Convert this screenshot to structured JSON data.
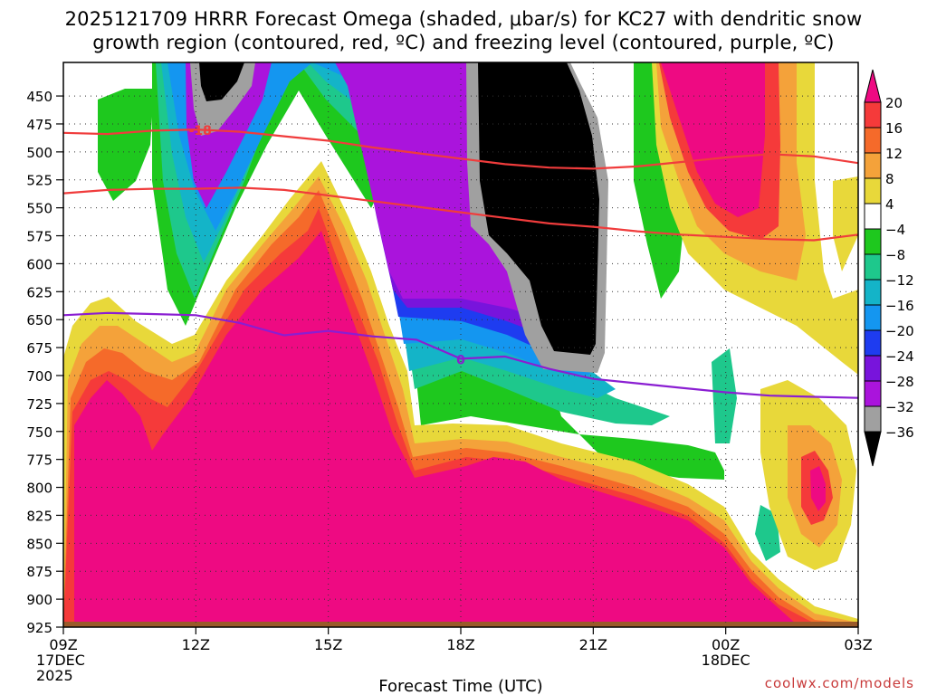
{
  "chart_data": {
    "type": "heatmap",
    "title_line1": "2025121709 HRRR Forecast Omega (shaded, μbar/s) for KC27 with dendritic snow",
    "title_line2": "growth region (contoured, red, ºC) and freezing level (contoured, purple, ºC)",
    "xlabel": "Forecast Time (UTC)",
    "ylabel": "",
    "credit": "coolwx.com/models",
    "x_range": [
      0,
      18
    ],
    "y_range": [
      925,
      420
    ],
    "y_ticks": [
      450,
      475,
      500,
      525,
      550,
      575,
      600,
      625,
      650,
      675,
      700,
      725,
      750,
      775,
      800,
      825,
      850,
      875,
      900,
      925
    ],
    "y_labels": [
      "450",
      "475",
      "500",
      "525",
      "550",
      "575",
      "600",
      "625",
      "650",
      "675",
      "700",
      "725",
      "750",
      "775",
      "800",
      "825",
      "850",
      "875",
      "900",
      "925"
    ],
    "x_ticks": [
      {
        "h": 0,
        "line1": "09Z",
        "line2": "17DEC",
        "line3": "2025"
      },
      {
        "h": 3,
        "line1": "12Z",
        "line2": "",
        "line3": ""
      },
      {
        "h": 6,
        "line1": "15Z",
        "line2": "",
        "line3": ""
      },
      {
        "h": 9,
        "line1": "18Z",
        "line2": "",
        "line3": ""
      },
      {
        "h": 12,
        "line1": "21Z",
        "line2": "",
        "line3": ""
      },
      {
        "h": 15,
        "line1": "00Z",
        "line2": "18DEC",
        "line3": ""
      },
      {
        "h": 18,
        "line1": "03Z",
        "line2": "",
        "line3": ""
      }
    ],
    "colorbar": {
      "labels": [
        "20",
        "16",
        "12",
        "8",
        "4",
        "−4",
        "−8",
        "−12",
        "−16",
        "−20",
        "−24",
        "−28",
        "−32",
        "−36"
      ],
      "colors": [
        "#ee0a82",
        "#f53a3a",
        "#f56a2a",
        "#f4a23a",
        "#e8d83a",
        "#ffffff",
        "#1ec81e",
        "#1ec88c",
        "#14b4c8",
        "#1496f0",
        "#1e3cf0",
        "#7814dc",
        "#aa14dc",
        "#a0a0a0",
        "#000000"
      ]
    },
    "contour_labels": {
      "dgz_top": "-18",
      "freezing": "0"
    },
    "series": [
      {
        "name": "dgz_top (-18 C)",
        "color": "#f03c3c",
        "points": [
          [
            0,
            483
          ],
          [
            1,
            484
          ],
          [
            2,
            481
          ],
          [
            3,
            480
          ],
          [
            4,
            482
          ],
          [
            5,
            486
          ],
          [
            6,
            490
          ],
          [
            7,
            496
          ],
          [
            8,
            501
          ],
          [
            9,
            506
          ],
          [
            10,
            511
          ],
          [
            11,
            514
          ],
          [
            12,
            515
          ],
          [
            13,
            513
          ],
          [
            14,
            509
          ],
          [
            15,
            505
          ],
          [
            16,
            502
          ],
          [
            17,
            504
          ],
          [
            18,
            510
          ]
        ]
      },
      {
        "name": "dgz_bottom (-12 C)",
        "color": "#f03c3c",
        "points": [
          [
            0,
            537
          ],
          [
            1,
            534
          ],
          [
            2,
            533
          ],
          [
            3,
            533
          ],
          [
            4,
            532
          ],
          [
            5,
            534
          ],
          [
            6,
            539
          ],
          [
            7,
            544
          ],
          [
            8,
            549
          ],
          [
            9,
            554
          ],
          [
            10,
            559
          ],
          [
            11,
            564
          ],
          [
            12,
            567
          ],
          [
            13,
            571
          ],
          [
            14,
            574
          ],
          [
            15,
            576
          ],
          [
            16,
            578
          ],
          [
            17,
            579
          ],
          [
            18,
            574
          ]
        ]
      },
      {
        "name": "freezing_level (0 C)",
        "color": "#8a1ed2",
        "points": [
          [
            0,
            646
          ],
          [
            1,
            644
          ],
          [
            2,
            645
          ],
          [
            3,
            646
          ],
          [
            4,
            653
          ],
          [
            5,
            664
          ],
          [
            6,
            660
          ],
          [
            7,
            665
          ],
          [
            8,
            668
          ],
          [
            9,
            685
          ],
          [
            10,
            683
          ],
          [
            11,
            694
          ],
          [
            12,
            703
          ],
          [
            13,
            707
          ],
          [
            14,
            711
          ],
          [
            15,
            715
          ],
          [
            16,
            718
          ],
          [
            17,
            719
          ],
          [
            18,
            720
          ]
        ]
      }
    ]
  }
}
